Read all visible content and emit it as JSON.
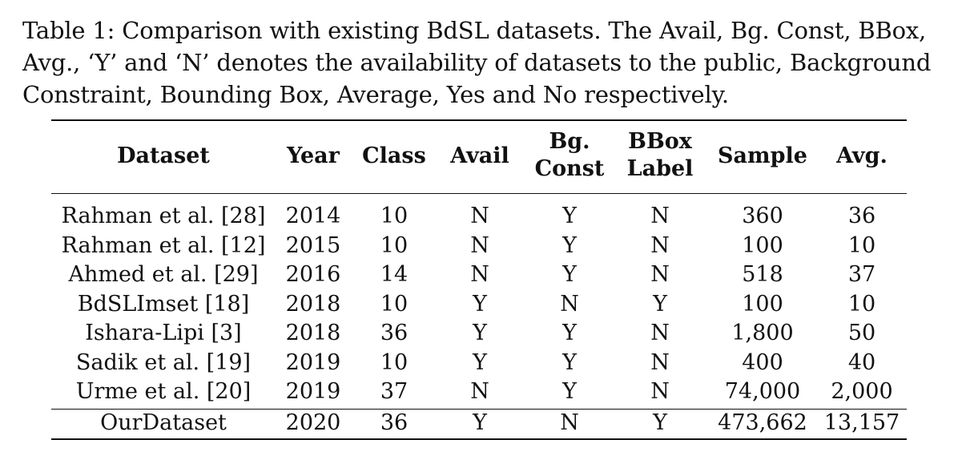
{
  "caption": "Table 1: Comparison with existing BdSL datasets. The Avail, Bg. Const, BBox, Avg., ‘Y’ and ‘N’ denotes the availability of datasets to the public, Background Constraint, Bounding Box, Average, Yes and No respectively.",
  "headers": [
    [
      "Dataset"
    ],
    [
      "Year"
    ],
    [
      "Class"
    ],
    [
      "Avail"
    ],
    [
      "Bg.",
      "Const"
    ],
    [
      "BBox",
      "Label"
    ],
    [
      "Sample"
    ],
    [
      "Avg."
    ]
  ],
  "rows": [
    [
      "Rahman et al. [28]",
      "2014",
      "10",
      "N",
      "Y",
      "N",
      "360",
      "36"
    ],
    [
      "Rahman et al. [12]",
      "2015",
      "10",
      "N",
      "Y",
      "N",
      "100",
      "10"
    ],
    [
      "Ahmed et al. [29]",
      "2016",
      "14",
      "N",
      "Y",
      "N",
      "518",
      "37"
    ],
    [
      "BdSLImset [18]",
      "2018",
      "10",
      "Y",
      "N",
      "Y",
      "100",
      "10"
    ],
    [
      "Ishara-Lipi [3]",
      "2018",
      "36",
      "Y",
      "Y",
      "N",
      "1,800",
      "50"
    ],
    [
      "Sadik et al. [19]",
      "2019",
      "10",
      "Y",
      "Y",
      "N",
      "400",
      "40"
    ],
    [
      "Urme et al. [20]",
      "2019",
      "37",
      "N",
      "Y",
      "N",
      "74,000",
      "2,000"
    ],
    [
      "OurDataset",
      "2020",
      "36",
      "Y",
      "N",
      "Y",
      "473,662",
      "13,157"
    ]
  ]
}
